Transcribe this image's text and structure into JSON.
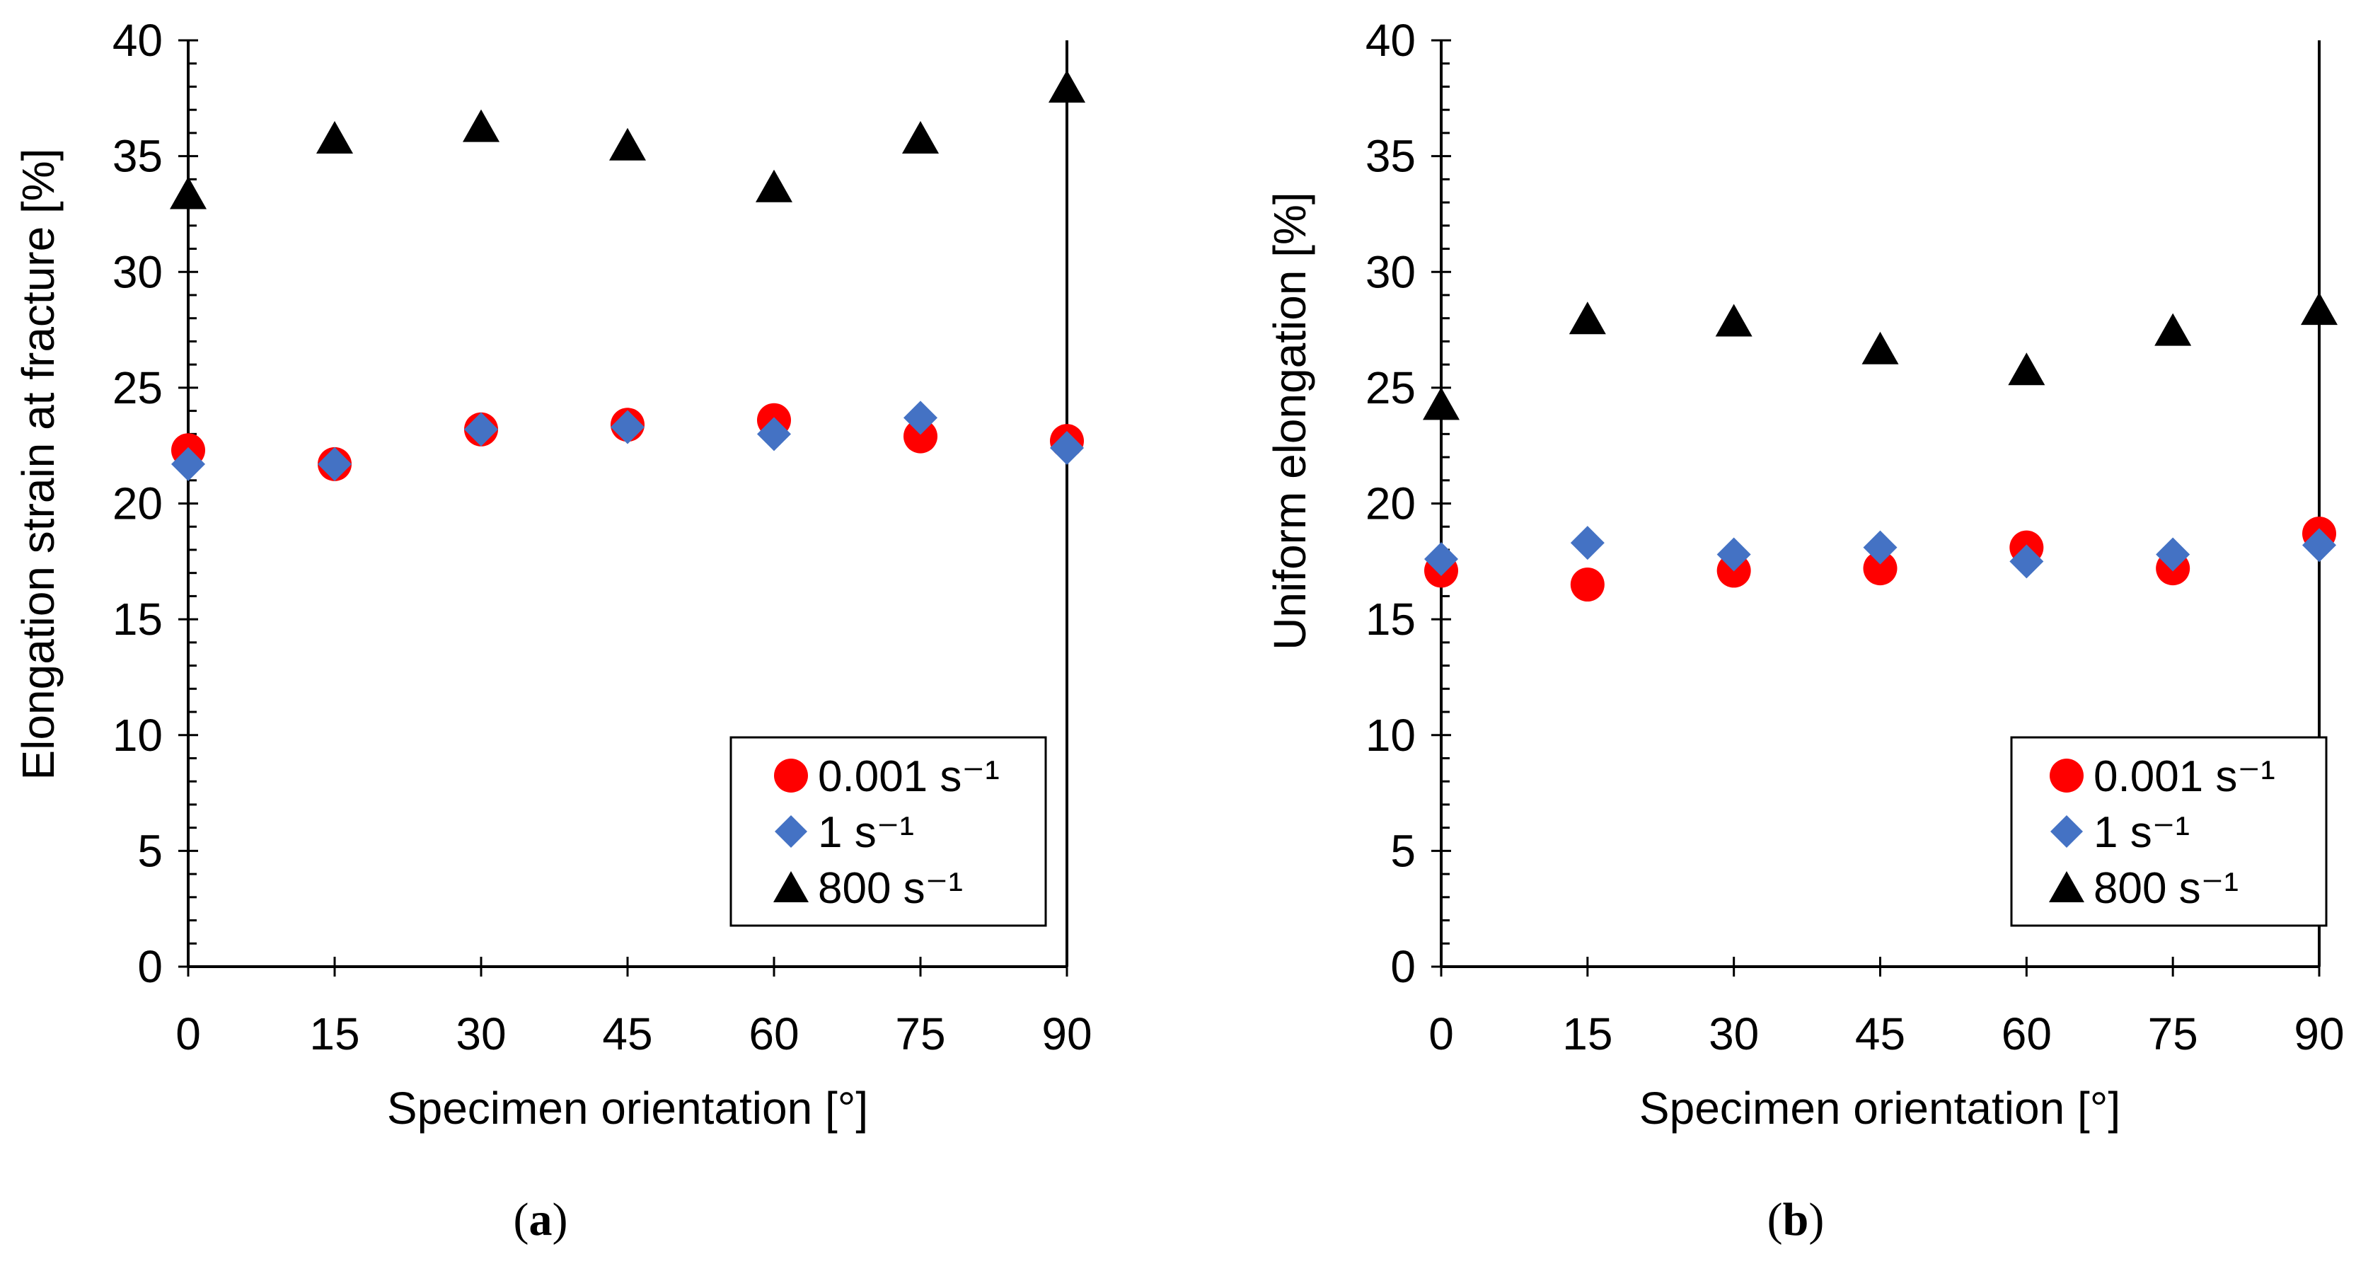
{
  "colors": {
    "rate_0001": "#ff0000",
    "rate_1": "#4472c4",
    "rate_800": "#000000"
  },
  "chart_data": [
    {
      "type": "scatter",
      "panel": "a",
      "caption": {
        "open": "(",
        "letter": "a",
        "close": ")"
      },
      "xlabel": "Specimen orientation [°]",
      "ylabel": "Elongation strain at fracture [%]",
      "xlim": [
        0,
        90
      ],
      "ylim": [
        0,
        40
      ],
      "x_ticks": [
        0,
        15,
        30,
        45,
        60,
        75,
        90
      ],
      "y_ticks": [
        0,
        5,
        10,
        15,
        20,
        25,
        30,
        35,
        40
      ],
      "y_minor_step": 1,
      "grid": false,
      "legend_position": "bottom-right",
      "series": [
        {
          "name": "0.001 s⁻¹",
          "marker": "circle",
          "color": "#ff0000",
          "x": [
            0,
            15,
            30,
            45,
            60,
            75,
            90
          ],
          "y": [
            22.3,
            21.7,
            23.2,
            23.4,
            23.6,
            22.9,
            22.7
          ]
        },
        {
          "name": "1 s⁻¹",
          "marker": "diamond",
          "color": "#4472c4",
          "x": [
            0,
            15,
            30,
            45,
            60,
            75,
            90
          ],
          "y": [
            21.7,
            21.7,
            23.2,
            23.3,
            23.0,
            23.7,
            22.4
          ]
        },
        {
          "name": "800 s⁻¹",
          "marker": "triangle",
          "color": "#000000",
          "x": [
            0,
            15,
            30,
            45,
            60,
            75,
            90
          ],
          "y": [
            33.2,
            35.6,
            36.1,
            35.3,
            33.5,
            35.6,
            37.8
          ]
        }
      ]
    },
    {
      "type": "scatter",
      "panel": "b",
      "caption": {
        "open": "(",
        "letter": "b",
        "close": ")"
      },
      "xlabel": "Specimen orientation [°]",
      "ylabel": "Uniform elongation [%]",
      "xlim": [
        0,
        90
      ],
      "ylim": [
        0,
        40
      ],
      "x_ticks": [
        0,
        15,
        30,
        45,
        60,
        75,
        90
      ],
      "y_ticks": [
        0,
        5,
        10,
        15,
        20,
        25,
        30,
        35,
        40
      ],
      "y_minor_step": 1,
      "grid": false,
      "legend_position": "bottom-right",
      "series": [
        {
          "name": "0.001 s⁻¹",
          "marker": "circle",
          "color": "#ff0000",
          "x": [
            0,
            15,
            30,
            45,
            60,
            75,
            90
          ],
          "y": [
            17.1,
            16.5,
            17.1,
            17.2,
            18.1,
            17.2,
            18.7
          ]
        },
        {
          "name": "1 s⁻¹",
          "marker": "diamond",
          "color": "#4472c4",
          "x": [
            0,
            15,
            30,
            45,
            60,
            75,
            90
          ],
          "y": [
            17.6,
            18.3,
            17.8,
            18.1,
            17.5,
            17.8,
            18.2
          ]
        },
        {
          "name": "800 s⁻¹",
          "marker": "triangle",
          "color": "#000000",
          "x": [
            0,
            15,
            30,
            45,
            60,
            75,
            90
          ],
          "y": [
            24.1,
            27.8,
            27.7,
            26.5,
            25.6,
            27.3,
            28.2
          ]
        }
      ]
    }
  ]
}
